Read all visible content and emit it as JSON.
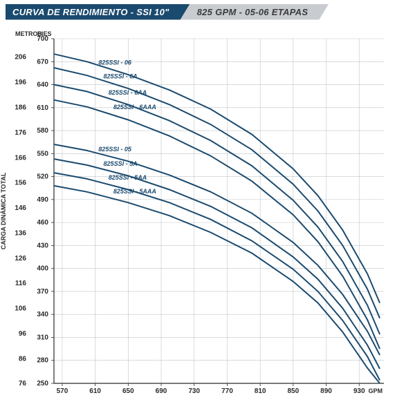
{
  "header": {
    "left": "CURVA DE RENDIMIENTO - SSI 10\"",
    "right": "825 GPM - 05-06 ETAPAS"
  },
  "chart": {
    "type": "line",
    "background_color": "#ffffff",
    "grid_color": "#c0c4c8",
    "axis_color": "#2a2a2a",
    "curve_color": "#1a4a6e",
    "curve_width": 2,
    "y_left_label": "METROS",
    "y_right_label": "PIES",
    "x_label": "GPM",
    "side_label": "CARGA DINÁMICA TOTAL",
    "x_ticks": [
      570,
      610,
      650,
      690,
      730,
      770,
      810,
      850,
      890,
      930
    ],
    "x_min": 560,
    "x_max": 960,
    "y_pies_ticks": [
      250,
      280,
      310,
      340,
      370,
      400,
      430,
      460,
      490,
      520,
      550,
      580,
      610,
      640,
      670,
      700
    ],
    "y_metros_ticks": [
      76,
      86,
      96,
      106,
      116,
      126,
      136,
      146,
      156,
      166,
      176,
      186,
      196,
      206
    ],
    "y_min": 250,
    "y_max": 700,
    "series": [
      {
        "label": "825SSI - 06",
        "label_x": 614,
        "label_y": 666,
        "points": [
          [
            560,
            680
          ],
          [
            600,
            670
          ],
          [
            650,
            653
          ],
          [
            700,
            633
          ],
          [
            750,
            608
          ],
          [
            800,
            575
          ],
          [
            850,
            530
          ],
          [
            880,
            495
          ],
          [
            910,
            450
          ],
          [
            940,
            393
          ],
          [
            955,
            355
          ]
        ]
      },
      {
        "label": "825SSI - 6A",
        "label_x": 620,
        "label_y": 648,
        "points": [
          [
            560,
            662
          ],
          [
            600,
            652
          ],
          [
            650,
            635
          ],
          [
            700,
            614
          ],
          [
            750,
            588
          ],
          [
            800,
            555
          ],
          [
            850,
            510
          ],
          [
            880,
            475
          ],
          [
            910,
            430
          ],
          [
            940,
            373
          ],
          [
            955,
            335
          ]
        ]
      },
      {
        "label": "825SSI - 6AA",
        "label_x": 626,
        "label_y": 627,
        "points": [
          [
            560,
            640
          ],
          [
            600,
            631
          ],
          [
            650,
            614
          ],
          [
            700,
            593
          ],
          [
            750,
            567
          ],
          [
            800,
            534
          ],
          [
            850,
            489
          ],
          [
            880,
            454
          ],
          [
            910,
            409
          ],
          [
            940,
            352
          ],
          [
            955,
            314
          ]
        ]
      },
      {
        "label": "825SSI - 6AAA",
        "label_x": 632,
        "label_y": 608,
        "points": [
          [
            560,
            620
          ],
          [
            600,
            611
          ],
          [
            650,
            594
          ],
          [
            700,
            573
          ],
          [
            750,
            547
          ],
          [
            800,
            514
          ],
          [
            850,
            470
          ],
          [
            880,
            435
          ],
          [
            910,
            390
          ],
          [
            940,
            333
          ],
          [
            955,
            295
          ]
        ]
      },
      {
        "label": "825SSI - 05",
        "label_x": 614,
        "label_y": 553,
        "points": [
          [
            560,
            562
          ],
          [
            600,
            554
          ],
          [
            650,
            540
          ],
          [
            700,
            522
          ],
          [
            750,
            500
          ],
          [
            800,
            472
          ],
          [
            850,
            434
          ],
          [
            880,
            404
          ],
          [
            910,
            366
          ],
          [
            940,
            318
          ],
          [
            955,
            287
          ]
        ]
      },
      {
        "label": "825SSI - 5A",
        "label_x": 620,
        "label_y": 534,
        "points": [
          [
            560,
            543
          ],
          [
            600,
            535
          ],
          [
            650,
            521
          ],
          [
            700,
            503
          ],
          [
            750,
            481
          ],
          [
            800,
            453
          ],
          [
            850,
            415
          ],
          [
            880,
            386
          ],
          [
            910,
            348
          ],
          [
            940,
            300
          ],
          [
            955,
            269
          ]
        ]
      },
      {
        "label": "825SSI - 5AA",
        "label_x": 626,
        "label_y": 516,
        "points": [
          [
            560,
            525
          ],
          [
            600,
            517
          ],
          [
            650,
            503
          ],
          [
            700,
            486
          ],
          [
            750,
            464
          ],
          [
            800,
            436
          ],
          [
            850,
            399
          ],
          [
            880,
            370
          ],
          [
            910,
            332
          ],
          [
            940,
            285
          ],
          [
            955,
            254
          ]
        ]
      },
      {
        "label": "825SSI - 5AAA",
        "label_x": 632,
        "label_y": 498,
        "points": [
          [
            560,
            508
          ],
          [
            600,
            500
          ],
          [
            650,
            486
          ],
          [
            700,
            469
          ],
          [
            750,
            447
          ],
          [
            800,
            420
          ],
          [
            850,
            383
          ],
          [
            880,
            355
          ],
          [
            910,
            317
          ],
          [
            940,
            270
          ],
          [
            955,
            250
          ]
        ]
      }
    ]
  }
}
